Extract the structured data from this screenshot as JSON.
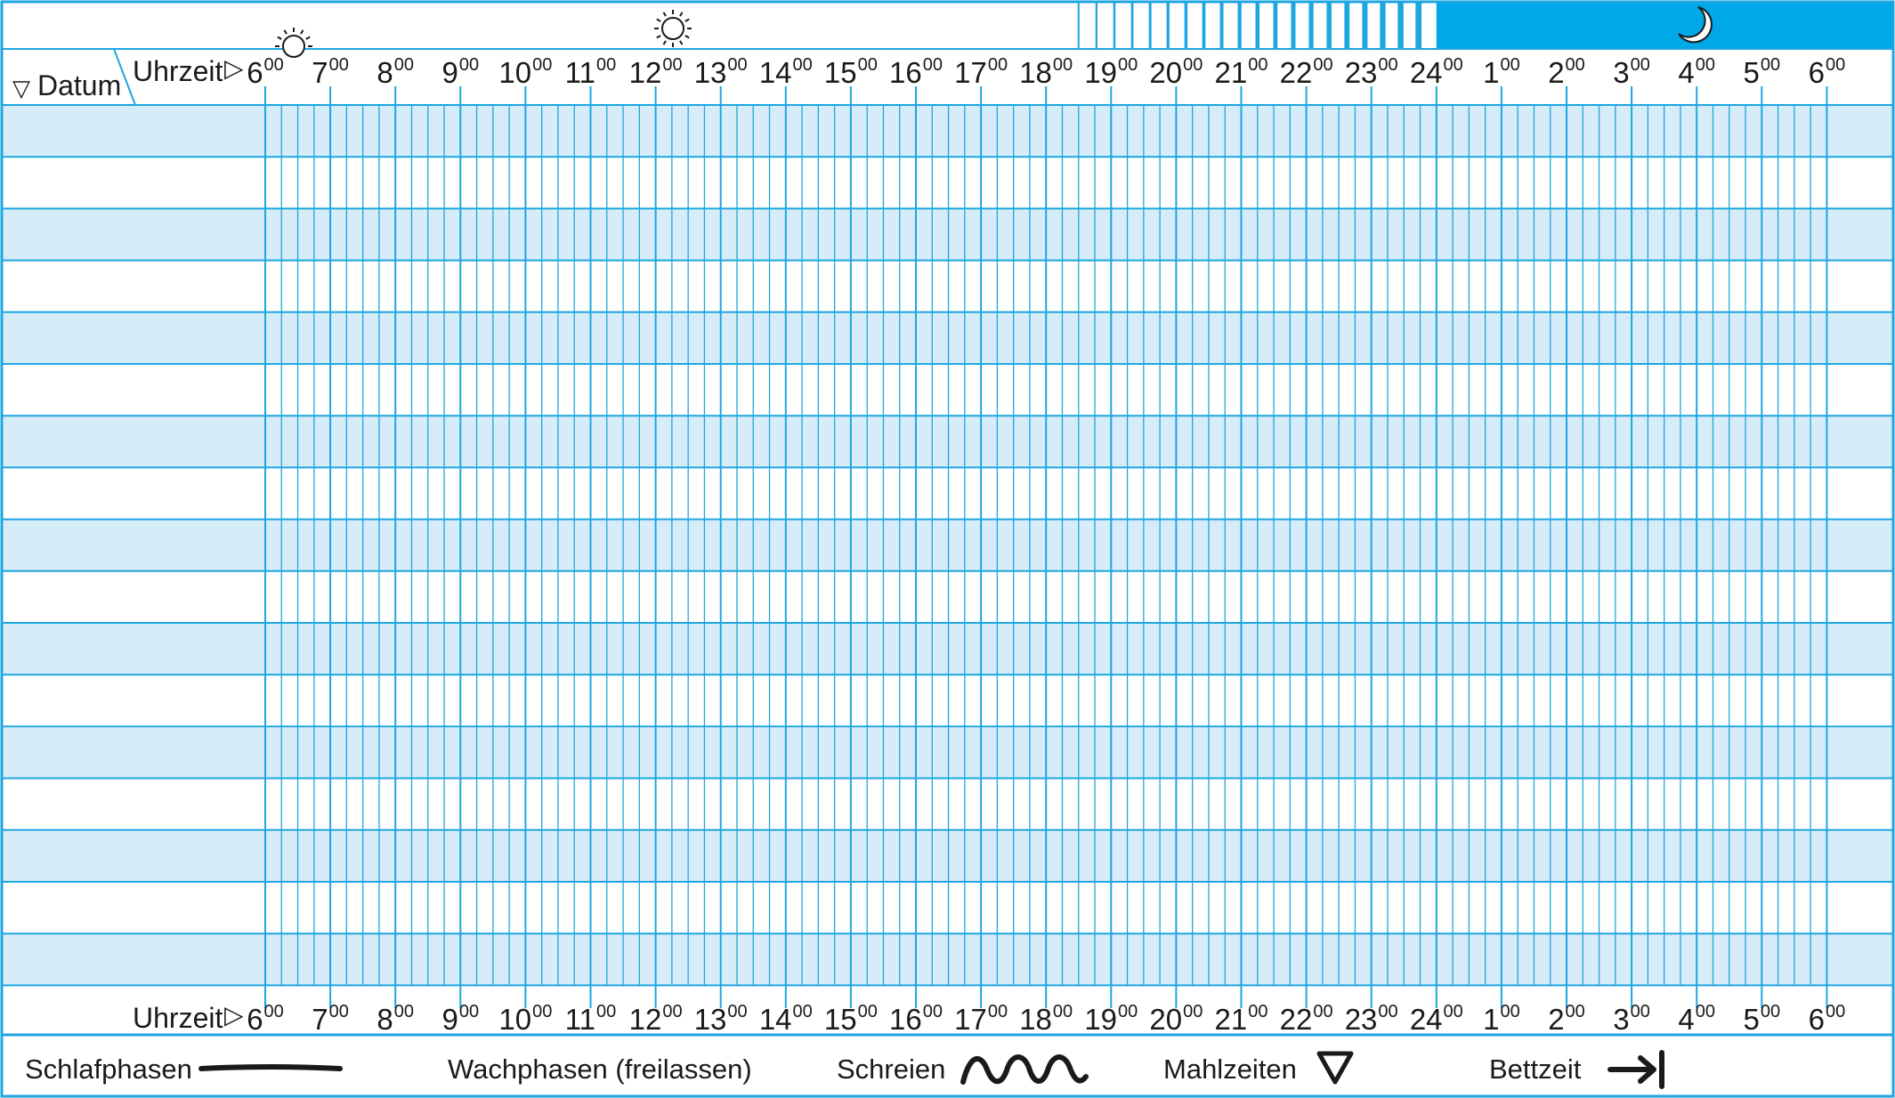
{
  "header": {
    "date_label": "Datum",
    "date_marker": "▽",
    "time_label": "Uhrzeit",
    "time_marker": "▷",
    "icons": [
      "sun-rising-icon",
      "sun-full-icon",
      "moon-icon"
    ]
  },
  "hours": [
    {
      "h": "6",
      "m": "00"
    },
    {
      "h": "7",
      "m": "00"
    },
    {
      "h": "8",
      "m": "00"
    },
    {
      "h": "9",
      "m": "00"
    },
    {
      "h": "10",
      "m": "00"
    },
    {
      "h": "11",
      "m": "00"
    },
    {
      "h": "12",
      "m": "00"
    },
    {
      "h": "13",
      "m": "00"
    },
    {
      "h": "14",
      "m": "00"
    },
    {
      "h": "15",
      "m": "00"
    },
    {
      "h": "16",
      "m": "00"
    },
    {
      "h": "17",
      "m": "00"
    },
    {
      "h": "18",
      "m": "00"
    },
    {
      "h": "19",
      "m": "00"
    },
    {
      "h": "20",
      "m": "00"
    },
    {
      "h": "21",
      "m": "00"
    },
    {
      "h": "22",
      "m": "00"
    },
    {
      "h": "23",
      "m": "00"
    },
    {
      "h": "24",
      "m": "00"
    },
    {
      "h": "1",
      "m": "00"
    },
    {
      "h": "2",
      "m": "00"
    },
    {
      "h": "3",
      "m": "00"
    },
    {
      "h": "4",
      "m": "00"
    },
    {
      "h": "5",
      "m": "00"
    },
    {
      "h": "6",
      "m": "00"
    }
  ],
  "row_count": 17,
  "subdivisions_per_hour": 4,
  "legend": {
    "sleep": "Schlafphasen",
    "awake": "Wachphasen (freilassen)",
    "crying": "Schreien",
    "meals": "Mahlzeiten",
    "bedtime": "Bettzeit"
  },
  "colors": {
    "line": "#1ea6e0",
    "band": "#d6edf9",
    "night": "#00a8e8",
    "text": "#1a1a1a"
  }
}
